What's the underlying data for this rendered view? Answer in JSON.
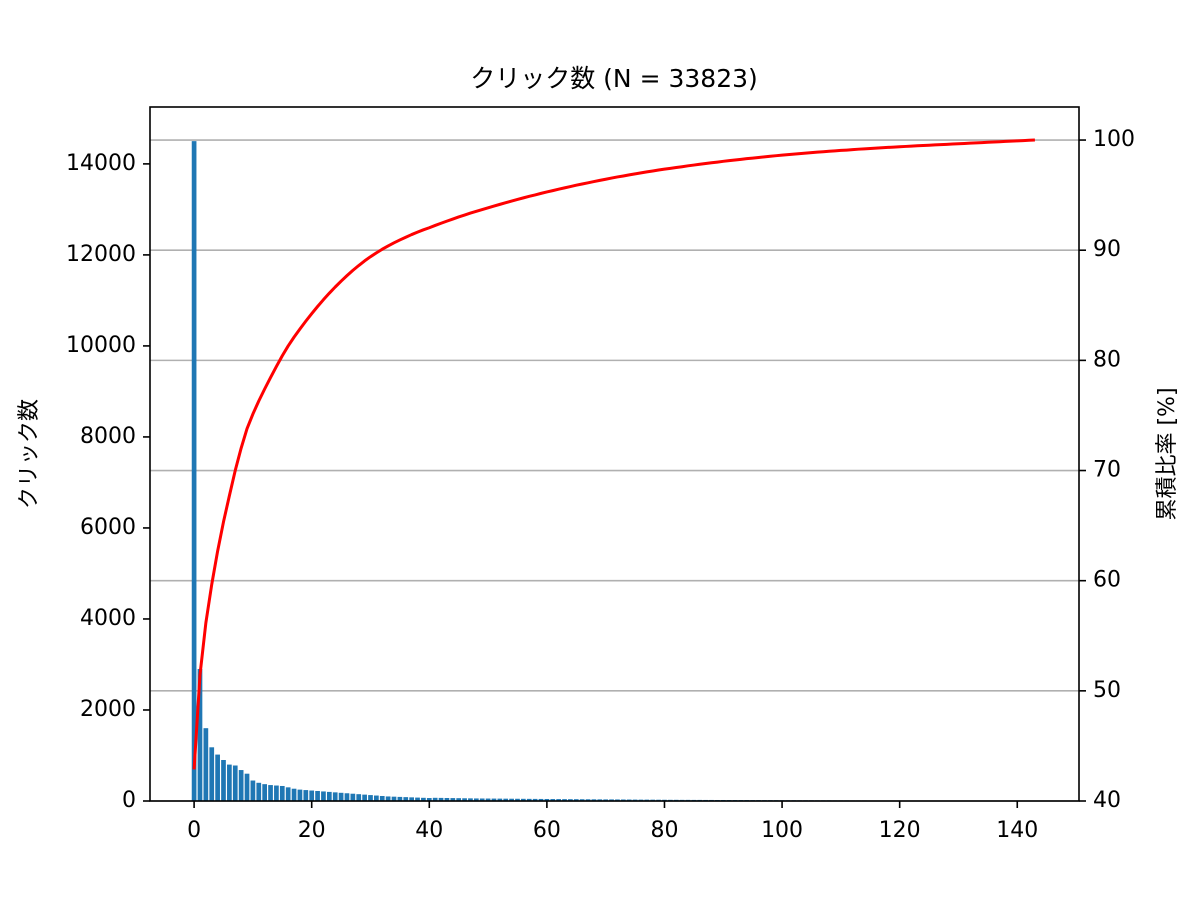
{
  "chart_data": {
    "type": "pareto",
    "title": "クリック数 (N = 33823)",
    "ylabel": "クリック数",
    "y2label": "累積比率 [%]",
    "x": [
      0,
      1,
      2,
      3,
      4,
      5,
      6,
      7,
      8,
      9,
      10,
      11,
      12,
      13,
      14,
      15,
      16,
      17,
      18,
      19,
      20,
      21,
      22,
      23,
      24,
      25,
      26,
      27,
      28,
      29,
      30,
      31,
      32,
      33,
      34,
      35,
      36,
      37,
      38,
      39,
      40,
      41,
      42,
      43,
      44,
      45,
      46,
      47,
      48,
      49,
      50,
      51,
      52,
      53,
      54,
      55,
      56,
      57,
      58,
      59,
      60,
      61,
      62,
      63,
      64,
      65,
      66,
      67,
      68,
      69,
      70,
      71,
      72,
      73,
      74,
      75,
      76,
      77,
      78,
      79,
      80,
      81,
      82,
      83,
      84,
      85,
      86,
      87,
      88,
      89,
      90,
      91,
      92,
      93,
      94,
      95,
      96,
      97,
      98,
      99,
      100,
      101,
      102,
      103,
      104,
      105,
      106,
      107,
      108,
      109,
      110,
      111,
      112,
      113,
      114,
      115,
      116,
      117,
      118,
      119,
      120,
      121,
      122,
      123,
      124,
      125,
      126,
      127,
      128,
      129,
      130,
      131,
      132,
      133,
      134,
      135,
      136,
      137,
      138,
      139,
      140,
      141,
      142,
      143
    ],
    "series": [
      {
        "type": "bar",
        "color": "#1f77b4",
        "axis": "y",
        "values": [
          14500,
          2900,
          1600,
          1180,
          1020,
          901,
          800,
          780,
          680,
          600,
          450,
          400,
          370,
          350,
          340,
          330,
          300,
          270,
          250,
          240,
          230,
          220,
          210,
          200,
          190,
          180,
          170,
          160,
          150,
          140,
          130,
          120,
          110,
          100,
          95,
          90,
          85,
          80,
          75,
          70,
          65,
          70,
          68,
          66,
          64,
          62,
          60,
          58,
          56,
          55,
          54,
          53,
          52,
          51,
          50,
          49,
          48,
          47,
          46,
          45,
          44,
          43,
          42,
          41,
          40,
          40,
          39,
          38,
          37,
          36,
          35,
          35,
          34,
          33,
          32,
          31,
          30,
          30,
          29,
          28,
          27,
          26,
          26,
          25,
          25,
          24,
          24,
          23,
          23,
          22,
          22,
          21,
          21,
          20,
          20,
          19,
          19,
          18,
          18,
          17,
          17,
          16,
          16,
          15,
          15,
          15,
          14,
          14,
          14,
          13,
          13,
          13,
          12,
          12,
          12,
          11,
          11,
          11,
          10,
          10,
          10,
          10,
          10,
          10,
          9,
          9,
          9,
          9,
          9,
          9,
          9,
          9,
          9,
          9,
          9,
          9,
          9,
          9,
          9,
          9,
          9,
          8,
          8,
          8
        ]
      },
      {
        "type": "line",
        "color": "#ff0000",
        "axis": "y2",
        "values": [
          42.87,
          51.44,
          56.17,
          59.66,
          62.68,
          65.34,
          67.71,
          70.01,
          72.03,
          73.8,
          75.13,
          76.31,
          77.4,
          78.44,
          79.45,
          80.42,
          81.31,
          82.11,
          82.85,
          83.56,
          84.24,
          84.89,
          85.51,
          86.1,
          86.66,
          87.19,
          87.69,
          88.17,
          88.61,
          89.03,
          89.41,
          89.76,
          90.09,
          90.39,
          90.67,
          90.93,
          91.18,
          91.42,
          91.64,
          91.85,
          92.04,
          92.25,
          92.45,
          92.64,
          92.83,
          93.02,
          93.19,
          93.37,
          93.53,
          93.69,
          93.85,
          94.01,
          94.16,
          94.31,
          94.46,
          94.61,
          94.75,
          94.89,
          95.02,
          95.16,
          95.29,
          95.41,
          95.54,
          95.66,
          95.78,
          95.9,
          96.01,
          96.12,
          96.23,
          96.34,
          96.44,
          96.55,
          96.65,
          96.74,
          96.84,
          96.93,
          97.02,
          97.11,
          97.19,
          97.28,
          97.36,
          97.43,
          97.51,
          97.58,
          97.66,
          97.73,
          97.8,
          97.87,
          97.94,
          98.0,
          98.07,
          98.13,
          98.19,
          98.25,
          98.31,
          98.36,
          98.42,
          98.47,
          98.53,
          98.58,
          98.63,
          98.68,
          98.72,
          98.77,
          98.81,
          98.86,
          98.9,
          98.94,
          98.98,
          99.02,
          99.06,
          99.09,
          99.13,
          99.17,
          99.2,
          99.23,
          99.27,
          99.3,
          99.33,
          99.36,
          99.39,
          99.42,
          99.45,
          99.48,
          99.5,
          99.53,
          99.56,
          99.58,
          99.61,
          99.64,
          99.66,
          99.69,
          99.72,
          99.74,
          99.77,
          99.8,
          99.82,
          99.85,
          99.88,
          99.9,
          99.93,
          99.95,
          99.98,
          100
        ]
      }
    ],
    "xlim": [
      -7.5,
      150.5
    ],
    "xticks": [
      0,
      20,
      40,
      60,
      80,
      100,
      120,
      140
    ],
    "ylim": [
      0,
      15250
    ],
    "yticks": [
      0,
      2000,
      4000,
      6000,
      8000,
      10000,
      12000,
      14000
    ],
    "y2lim": [
      40,
      103
    ],
    "y2ticks": [
      40,
      50,
      60,
      70,
      80,
      90,
      100
    ],
    "grid": "y2"
  }
}
